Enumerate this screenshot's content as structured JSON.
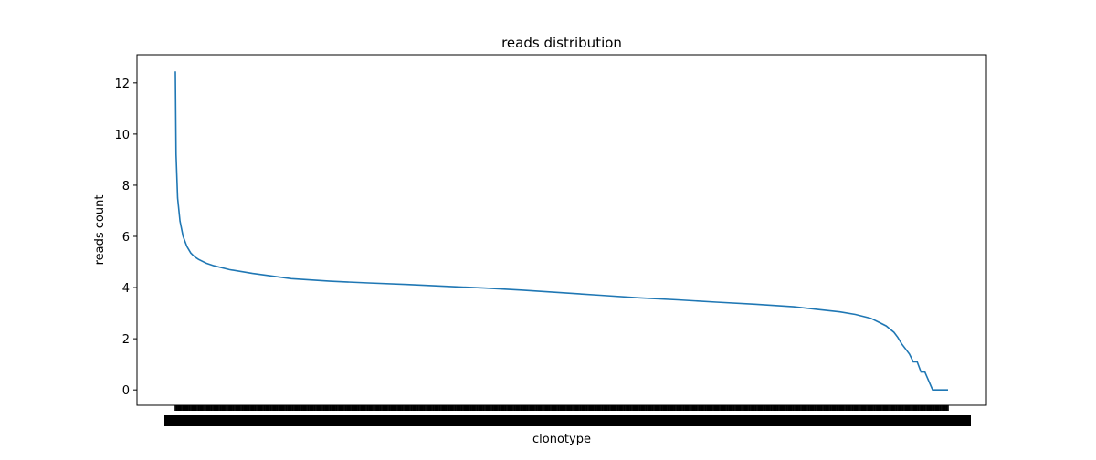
{
  "chart_data": {
    "type": "line",
    "title": "reads distribution",
    "xlabel": "clonotype",
    "ylabel": "reads count",
    "ylim": [
      -0.6,
      13.1
    ],
    "yticks": [
      0,
      2,
      4,
      6,
      8,
      10,
      12
    ],
    "grid": false,
    "legend": "none",
    "x_tick_labels_overlapping": true,
    "x_fraction": [
      0.0,
      0.001,
      0.003,
      0.006,
      0.01,
      0.015,
      0.02,
      0.025,
      0.03,
      0.04,
      0.05,
      0.07,
      0.1,
      0.15,
      0.2,
      0.25,
      0.3,
      0.35,
      0.4,
      0.45,
      0.5,
      0.55,
      0.6,
      0.65,
      0.7,
      0.75,
      0.8,
      0.83,
      0.86,
      0.88,
      0.9,
      0.91,
      0.92,
      0.93,
      0.935,
      0.94,
      0.945,
      0.95,
      0.955,
      0.96,
      0.965,
      0.97,
      0.98,
      0.99,
      1.0
    ],
    "series": [
      {
        "color": "#1f77b4",
        "values": [
          12.45,
          9.2,
          7.5,
          6.6,
          6.0,
          5.6,
          5.35,
          5.2,
          5.1,
          4.95,
          4.85,
          4.7,
          4.55,
          4.35,
          4.25,
          4.18,
          4.12,
          4.05,
          3.98,
          3.9,
          3.8,
          3.7,
          3.6,
          3.52,
          3.43,
          3.35,
          3.25,
          3.15,
          3.05,
          2.95,
          2.8,
          2.65,
          2.5,
          2.25,
          2.05,
          1.8,
          1.6,
          1.4,
          1.1,
          1.1,
          0.7,
          0.7,
          0.0,
          0.0,
          0.0
        ]
      }
    ]
  }
}
